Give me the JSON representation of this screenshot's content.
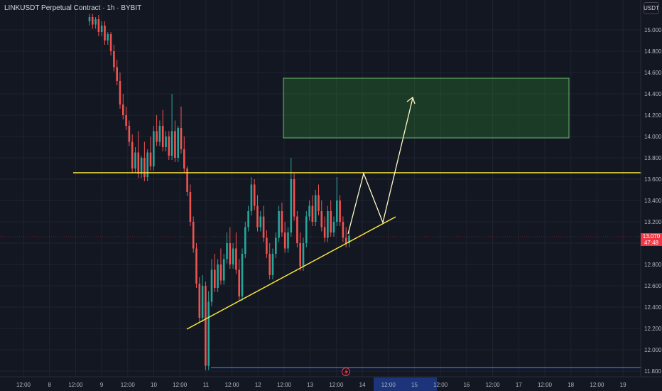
{
  "header": {
    "symbol_title": "LINKUSDT Perpetual Contract · 1h · BYBIT",
    "currency_button": "USDT"
  },
  "last_price": {
    "price": "13.070",
    "countdown": "47:48"
  },
  "colors": {
    "background": "#131722",
    "up_candle": "#26a69a",
    "down_candle": "#ef5350",
    "resistance_line": "#ffeb3b",
    "support_trendline": "#ffeb3b",
    "low_line": "#2962ff",
    "target_zone_fill": "#2e7d32",
    "target_zone_border": "#66bb6a",
    "projection_path": "#fff9c4",
    "price_tag": "#f23645",
    "highlight_band": "#1e3a8a"
  },
  "chart_data": {
    "type": "candlestick",
    "interval": "1h",
    "y_axis": {
      "ylim": [
        11.8,
        15.15
      ],
      "ticks": [
        "15.000",
        "14.800",
        "14.600",
        "14.400",
        "14.200",
        "14.000",
        "13.800",
        "13.600",
        "13.400",
        "13.200",
        "13.000",
        "12.800",
        "12.600",
        "12.400",
        "12.200",
        "12.000",
        "11.800"
      ]
    },
    "x_axis": {
      "ticks": [
        "12:00",
        "8",
        "12:00",
        "9",
        "12:00",
        "10",
        "12:00",
        "11",
        "12:00",
        "12",
        "12:00",
        "13",
        "12:00",
        "14",
        "12:00",
        "15",
        "12:00",
        "16",
        "12:00",
        "17",
        "12:00",
        "18",
        "12:00",
        "19"
      ]
    },
    "candles": [
      [
        15.08,
        15.15,
        15.12
      ],
      [
        15.12,
        15.15,
        15.05
      ],
      [
        15.05,
        15.12,
        15.1
      ],
      [
        15.1,
        15.14,
        14.98
      ],
      [
        14.98,
        15.08,
        15.04
      ],
      [
        15.04,
        15.08,
        14.9
      ],
      [
        14.9,
        14.98,
        14.96
      ],
      [
        14.96,
        14.98,
        14.8
      ],
      [
        14.8,
        14.86,
        14.65
      ],
      [
        14.65,
        14.72,
        14.52
      ],
      [
        14.52,
        14.6,
        14.3
      ],
      [
        14.3,
        14.4,
        14.2
      ],
      [
        14.2,
        14.28,
        14.1
      ],
      [
        14.1,
        14.15,
        13.95
      ],
      [
        13.95,
        14.02,
        13.7
      ],
      [
        13.7,
        13.9,
        13.85
      ],
      [
        13.85,
        14.05,
        13.65
      ],
      [
        13.65,
        13.82,
        13.8
      ],
      [
        13.8,
        13.95,
        13.62
      ],
      [
        13.62,
        13.88,
        13.85
      ],
      [
        13.85,
        14.0,
        13.72
      ],
      [
        13.72,
        14.1,
        14.05
      ],
      [
        14.05,
        14.2,
        13.95
      ],
      [
        13.95,
        14.15,
        14.1
      ],
      [
        14.1,
        14.25,
        13.9
      ],
      [
        13.9,
        14.05,
        14.0
      ],
      [
        14.0,
        14.05,
        13.82
      ],
      [
        13.82,
        14.4,
        14.05
      ],
      [
        14.05,
        14.15,
        13.8
      ],
      [
        13.8,
        14.1,
        14.08
      ],
      [
        14.08,
        14.28,
        13.88
      ],
      [
        13.88,
        14.0,
        13.7
      ],
      [
        13.7,
        13.72,
        13.48
      ],
      [
        13.48,
        13.55,
        13.2
      ],
      [
        13.2,
        13.25,
        12.95
      ],
      [
        12.95,
        13.0,
        12.62
      ],
      [
        12.62,
        12.68,
        12.3
      ],
      [
        12.3,
        12.7,
        12.6
      ],
      [
        12.6,
        12.64,
        11.85
      ],
      [
        11.85,
        12.55,
        12.45
      ],
      [
        12.45,
        12.85,
        12.75
      ],
      [
        12.75,
        12.9,
        12.58
      ],
      [
        12.58,
        12.85,
        12.8
      ],
      [
        12.8,
        12.95,
        12.65
      ],
      [
        12.65,
        12.9,
        12.85
      ],
      [
        12.85,
        13.1,
        13.0
      ],
      [
        13.0,
        13.15,
        12.8
      ],
      [
        12.8,
        13.0,
        12.95
      ],
      [
        12.95,
        13.1,
        12.75
      ],
      [
        12.75,
        12.85,
        12.5
      ],
      [
        12.5,
        12.95,
        12.9
      ],
      [
        12.9,
        13.2,
        13.15
      ],
      [
        13.15,
        13.35,
        13.3
      ],
      [
        13.3,
        13.62,
        13.55
      ],
      [
        13.55,
        13.6,
        13.35
      ],
      [
        13.35,
        13.45,
        13.15
      ],
      [
        13.15,
        13.3,
        13.25
      ],
      [
        13.25,
        13.35,
        13.05
      ],
      [
        13.05,
        13.12,
        12.9
      ],
      [
        12.9,
        13.0,
        12.7
      ],
      [
        12.7,
        12.95,
        12.9
      ],
      [
        12.9,
        13.1,
        13.05
      ],
      [
        13.05,
        13.35,
        13.3
      ],
      [
        13.3,
        13.38,
        13.1
      ],
      [
        13.1,
        13.2,
        12.95
      ],
      [
        12.95,
        13.15,
        13.1
      ],
      [
        13.1,
        13.8,
        13.6
      ],
      [
        13.6,
        13.65,
        13.25
      ],
      [
        13.25,
        13.3,
        13.0
      ],
      [
        13.0,
        13.1,
        12.78
      ],
      [
        12.78,
        13.05,
        13.0
      ],
      [
        13.0,
        13.3,
        13.25
      ],
      [
        13.25,
        13.4,
        13.35
      ],
      [
        13.35,
        13.45,
        13.2
      ],
      [
        13.2,
        13.5,
        13.45
      ],
      [
        13.45,
        13.55,
        13.3
      ],
      [
        13.3,
        13.4,
        13.15
      ],
      [
        13.15,
        13.25,
        13.05
      ],
      [
        13.05,
        13.35,
        13.3
      ],
      [
        13.3,
        13.4,
        13.1
      ],
      [
        13.1,
        13.25,
        13.2
      ],
      [
        13.2,
        13.62,
        13.4
      ],
      [
        13.4,
        13.45,
        13.2
      ],
      [
        13.2,
        13.25,
        13.05
      ],
      [
        13.05,
        13.15,
        13.0
      ],
      [
        13.0,
        13.12,
        13.07
      ]
    ],
    "annotations": {
      "resistance_level": 13.66,
      "lowest_low_level": 11.85,
      "target_zone": {
        "price_from": 14.0,
        "price_to": 14.55
      },
      "ascending_support": {
        "from_price": 12.2,
        "to_price": 13.25
      },
      "projection_prices": [
        13.07,
        13.66,
        13.2,
        14.4
      ]
    }
  }
}
